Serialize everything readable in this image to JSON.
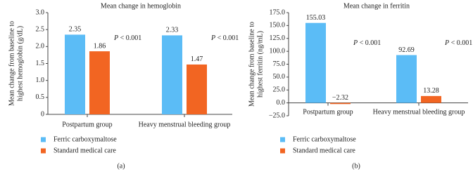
{
  "chart_data": [
    {
      "type": "bar",
      "title": "Mean change in hemoglobin",
      "ylabel": [
        "Mean change from baseline to",
        "highest hemoglobin (g/dL)"
      ],
      "categories": [
        "Postpartum group",
        "Heavy menstrual bleeding group"
      ],
      "series": [
        {
          "name": "Ferric carboxymaltose",
          "color": "#5bbcf6",
          "values": [
            2.35,
            2.33
          ]
        },
        {
          "name": "Standard medical care",
          "color": "#f26522",
          "values": [
            1.86,
            1.47
          ]
        }
      ],
      "annotations": [
        "P < 0.001",
        "P < 0.001"
      ],
      "ylim": [
        0,
        3
      ],
      "yticks": [
        0,
        0.5,
        {
          "value": 1,
          "label": "1.0"
        },
        1.5,
        {
          "value": 2,
          "label": "2.0"
        },
        2.5,
        {
          "value": 3,
          "label": "3.0"
        }
      ],
      "panel_label": "(a)"
    },
    {
      "type": "bar",
      "title": "Mean change in ferritin",
      "ylabel": [
        "Mean change from baseline to",
        "highest ferritin (ng/mL)"
      ],
      "categories": [
        "Postpartum group",
        "Heavy menstrual bleeding group"
      ],
      "series": [
        {
          "name": "Ferric carboxymaltose",
          "color": "#5bbcf6",
          "values": [
            155.03,
            92.69
          ]
        },
        {
          "name": "Standard medical care",
          "color": "#f26522",
          "values": [
            -2.32,
            13.28
          ],
          "value_labels": [
            "−2.32",
            "13.28"
          ]
        }
      ],
      "annotations": [
        "P < 0.001",
        "P < 0.001"
      ],
      "ylim": [
        -25,
        175
      ],
      "yticks": [
        {
          "value": -25,
          "label": "−25.0"
        },
        {
          "value": 0,
          "label": "0.0"
        },
        {
          "value": 25,
          "label": "25.0"
        },
        {
          "value": 50,
          "label": "50.0"
        },
        {
          "value": 75,
          "label": "75.0"
        },
        {
          "value": 100,
          "label": "100.0"
        },
        {
          "value": 125,
          "label": "125.0"
        },
        {
          "value": 150,
          "label": "150.0"
        },
        {
          "value": 175,
          "label": "175.0"
        }
      ],
      "panel_label": "(b)"
    }
  ]
}
